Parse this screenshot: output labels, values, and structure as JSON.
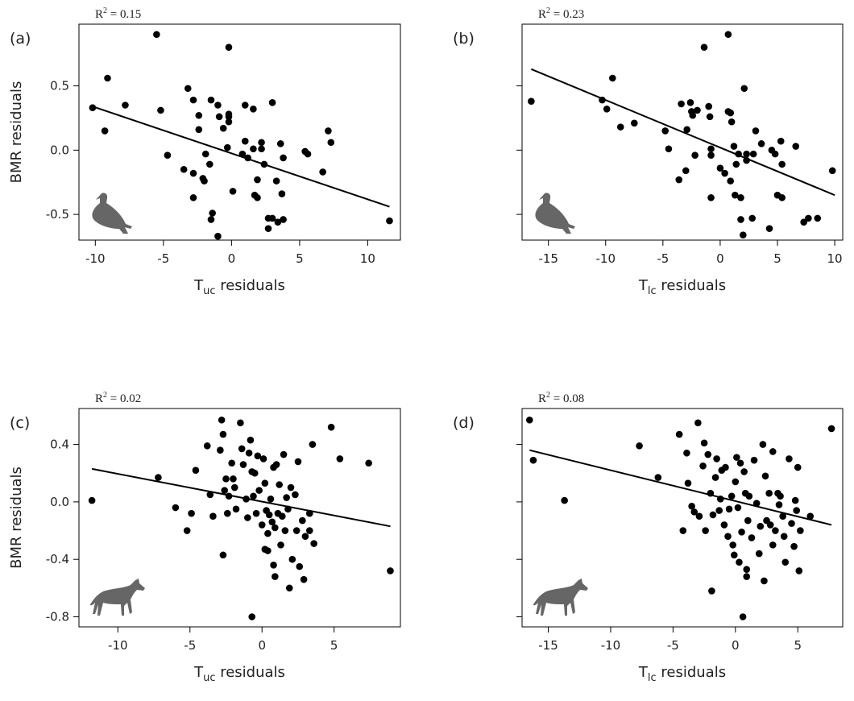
{
  "chart_data": [
    {
      "type": "scatter",
      "panel": "(a)",
      "annotation": {
        "base": "R",
        "sup": "2",
        "text": " = 0.15"
      },
      "xlabel": {
        "base": "T",
        "sub": "uc",
        "text": " residuals"
      },
      "ylabel": "BMR residuals",
      "icon": "bird",
      "color": "#000000",
      "fit_color": "#000000",
      "ytick_labels": true,
      "xlim": [
        -11.2,
        12.4
      ],
      "ylim": [
        -0.7,
        0.98
      ],
      "xticks": [
        -10,
        -5,
        0,
        5,
        10
      ],
      "yticks": [
        -0.5,
        {
          "value": 0,
          "label": "0.0"
        },
        0.5
      ],
      "x": [
        -10.2,
        -9.3,
        -9.1,
        -7.8,
        -5.5,
        -5.2,
        -4.7,
        -3.5,
        -3.2,
        -2.8,
        -2.8,
        -2.8,
        -2.4,
        -2.4,
        -2.1,
        -2.0,
        -1.9,
        -1.6,
        -1.5,
        -1.4,
        -1.5,
        -1.0,
        -1.0,
        -0.9,
        -0.6,
        -0.2,
        -0.2,
        -0.2,
        -0.2,
        -0.3,
        0.1,
        0.8,
        1.0,
        1.0,
        1.2,
        1.6,
        1.6,
        1.7,
        1.9,
        1.9,
        2.2,
        2.2,
        2.4,
        2.7,
        2.7,
        3.0,
        3.0,
        3.3,
        3.4,
        3.6,
        3.7,
        3.8,
        3.8,
        5.4,
        5.6,
        6.7,
        7.1,
        7.3,
        11.6
      ],
      "y": [
        0.33,
        0.15,
        0.56,
        0.35,
        0.9,
        0.31,
        -0.04,
        -0.15,
        0.48,
        0.39,
        -0.18,
        -0.37,
        0.27,
        0.16,
        -0.22,
        -0.24,
        -0.03,
        -0.11,
        0.39,
        -0.49,
        -0.54,
        0.35,
        -0.67,
        0.26,
        0.17,
        0.26,
        0.28,
        0.22,
        0.8,
        0.02,
        -0.32,
        -0.03,
        0.07,
        0.35,
        -0.06,
        0.01,
        0.32,
        -0.35,
        -0.37,
        -0.23,
        0.06,
        0.01,
        -0.11,
        -0.53,
        -0.61,
        0.37,
        -0.53,
        -0.24,
        -0.56,
        0.05,
        -0.34,
        -0.54,
        -0.06,
        -0.01,
        -0.03,
        -0.17,
        0.15,
        0.06,
        -0.55
      ],
      "fit": {
        "x": [
          -10.2,
          11.6
        ],
        "y": [
          0.34,
          -0.44
        ]
      }
    },
    {
      "type": "scatter",
      "panel": "(b)",
      "annotation": {
        "base": "R",
        "sup": "2",
        "text": " = 0.23"
      },
      "xlabel": {
        "base": "T",
        "sub": "lc",
        "text": " residuals"
      },
      "icon": "bird",
      "color": "#000000",
      "fit_color": "#000000",
      "ytick_labels": false,
      "xlim": [
        -17.3,
        10.7
      ],
      "ylim": [
        -0.7,
        0.98
      ],
      "xticks": [
        -15,
        -10,
        -5,
        0,
        5,
        10
      ],
      "yticks": [
        -0.5,
        {
          "value": 0,
          "label": "0.0"
        },
        0.5
      ],
      "x": [
        -16.5,
        -10.3,
        -9.9,
        -9.4,
        -8.7,
        -7.5,
        -4.8,
        -4.5,
        -3.6,
        -3.4,
        -3.0,
        -2.9,
        -2.6,
        -2.5,
        -2.4,
        -2.2,
        -2.0,
        -1.4,
        -1.0,
        -0.9,
        -0.8,
        -0.8,
        -0.8,
        0.0,
        0.4,
        0.7,
        0.9,
        0.7,
        0.9,
        1.0,
        1.2,
        1.3,
        1.4,
        1.6,
        1.8,
        1.8,
        2.0,
        2.1,
        2.3,
        2.3,
        2.8,
        2.9,
        3.1,
        3.6,
        4.3,
        4.5,
        4.8,
        5.0,
        5.3,
        5.4,
        5.4,
        6.6,
        7.3,
        7.7,
        8.5,
        9.8
      ],
      "y": [
        0.38,
        0.39,
        0.32,
        0.56,
        0.18,
        0.21,
        0.15,
        0.01,
        -0.23,
        0.36,
        -0.16,
        0.16,
        0.37,
        0.3,
        0.27,
        -0.04,
        0.31,
        0.8,
        0.34,
        0.26,
        -0.04,
        0.01,
        -0.37,
        -0.14,
        -0.18,
        0.9,
        0.29,
        0.3,
        -0.24,
        0.22,
        0.03,
        -0.35,
        -0.11,
        -0.03,
        -0.37,
        -0.54,
        -0.66,
        0.48,
        -0.03,
        -0.08,
        -0.53,
        -0.03,
        0.15,
        0.05,
        -0.61,
        0.0,
        -0.03,
        -0.35,
        0.07,
        -0.37,
        -0.11,
        0.03,
        -0.56,
        -0.53,
        -0.53,
        -0.16
      ],
      "fit": {
        "x": [
          -16.5,
          10.0
        ],
        "y": [
          0.63,
          -0.35
        ]
      }
    },
    {
      "type": "scatter",
      "panel": "(c)",
      "annotation": {
        "base": "R",
        "sup": "2",
        "text": " = 0.02"
      },
      "xlabel": {
        "base": "T",
        "sub": "uc",
        "text": " residuals"
      },
      "ylabel": "BMR residuals",
      "icon": "wolf",
      "color": "#000000",
      "fit_color": "#000000",
      "ytick_labels": true,
      "xlim": [
        -12.7,
        9.6
      ],
      "ylim": [
        -0.87,
        0.65
      ],
      "xticks": [
        -10,
        -5,
        0,
        5
      ],
      "yticks": [
        -0.8,
        -0.4,
        {
          "value": 0,
          "label": "0.0"
        },
        0.4
      ],
      "x": [
        -11.8,
        -7.2,
        -6.0,
        -5.2,
        -4.9,
        -4.6,
        -3.8,
        -3.6,
        -3.4,
        -2.9,
        -2.8,
        -2.7,
        -2.7,
        -2.6,
        -2.5,
        -2.4,
        -2.3,
        -2.1,
        -2.0,
        -1.9,
        -1.8,
        -1.5,
        -1.4,
        -1.3,
        -1.1,
        -1.0,
        -0.9,
        -0.8,
        -0.7,
        -0.6,
        -0.5,
        -0.4,
        -0.7,
        -0.3,
        -0.2,
        0.0,
        0.1,
        0.2,
        0.2,
        0.3,
        0.4,
        0.4,
        0.5,
        0.6,
        0.7,
        0.8,
        0.8,
        0.9,
        0.9,
        1.0,
        1.1,
        1.2,
        1.3,
        1.4,
        1.5,
        1.6,
        1.7,
        1.8,
        1.9,
        2.0,
        2.1,
        2.3,
        2.4,
        2.5,
        2.6,
        2.8,
        2.9,
        3.0,
        3.3,
        3.3,
        3.5,
        3.6,
        4.8,
        5.4,
        7.4,
        8.9
      ],
      "y": [
        0.01,
        0.17,
        -0.04,
        -0.2,
        -0.08,
        0.22,
        0.39,
        0.05,
        -0.1,
        0.36,
        0.57,
        0.47,
        -0.37,
        0.08,
        0.16,
        -0.08,
        0.04,
        0.27,
        0.16,
        0.1,
        -0.05,
        0.55,
        0.37,
        0.26,
        0.02,
        -0.11,
        0.34,
        0.43,
        0.21,
        0.04,
        0.2,
        -0.08,
        -0.8,
        0.32,
        0.08,
        -0.16,
        0.3,
        0.13,
        -0.33,
        -0.06,
        -0.22,
        -0.34,
        -0.09,
        0.02,
        -0.14,
        -0.44,
        0.24,
        -0.18,
        -0.52,
        0.26,
        -0.08,
        0.12,
        -0.3,
        -0.1,
        0.33,
        -0.2,
        0.03,
        -0.05,
        -0.6,
        0.1,
        -0.4,
        0.05,
        -0.2,
        0.28,
        -0.45,
        -0.13,
        -0.54,
        -0.24,
        -0.08,
        -0.2,
        0.4,
        -0.29,
        0.52,
        0.3,
        0.27,
        -0.48
      ],
      "fit": {
        "x": [
          -11.8,
          8.9
        ],
        "y": [
          0.23,
          -0.17
        ]
      }
    },
    {
      "type": "scatter",
      "panel": "(d)",
      "annotation": {
        "base": "R",
        "sup": "2",
        "text": " = 0.08"
      },
      "xlabel": {
        "base": "T",
        "sub": "lc",
        "text": " residuals"
      },
      "icon": "wolf",
      "color": "#000000",
      "fit_color": "#000000",
      "ytick_labels": false,
      "xlim": [
        -17.1,
        8.6
      ],
      "ylim": [
        -0.87,
        0.65
      ],
      "xticks": [
        -15,
        -10,
        -5,
        0,
        5
      ],
      "yticks": [
        -0.8,
        -0.4,
        {
          "value": 0,
          "label": "0.0"
        },
        0.4
      ],
      "x": [
        -16.5,
        -16.2,
        -13.7,
        -7.7,
        -6.2,
        -4.5,
        -4.2,
        -3.9,
        -3.8,
        -3.5,
        -3.3,
        -3.0,
        -2.9,
        -2.6,
        -2.5,
        -2.4,
        -2.2,
        -2.0,
        -1.9,
        -1.8,
        -1.6,
        -1.5,
        -1.3,
        -1.2,
        -1.1,
        -0.9,
        -0.8,
        -0.6,
        -0.5,
        -0.3,
        -0.2,
        -0.1,
        0.0,
        0.1,
        0.2,
        0.3,
        0.4,
        0.5,
        0.6,
        0.7,
        0.8,
        0.9,
        0.9,
        1.0,
        1.1,
        1.3,
        1.5,
        1.7,
        1.9,
        2.0,
        2.2,
        2.3,
        2.4,
        2.5,
        2.7,
        2.8,
        3.0,
        3.0,
        3.2,
        3.4,
        3.5,
        3.6,
        3.8,
        3.9,
        4.0,
        4.3,
        4.5,
        4.7,
        4.8,
        4.9,
        5.0,
        5.1,
        5.2,
        6.0,
        7.7
      ],
      "y": [
        0.57,
        0.29,
        0.01,
        0.39,
        0.17,
        0.47,
        -0.2,
        0.34,
        0.13,
        -0.03,
        -0.07,
        0.55,
        -0.1,
        0.25,
        0.41,
        -0.2,
        0.33,
        0.06,
        -0.62,
        -0.09,
        0.17,
        0.3,
        -0.06,
        0.02,
        0.22,
        -0.16,
        0.24,
        -0.24,
        -0.05,
        0.04,
        -0.3,
        -0.37,
        0.14,
        0.31,
        -0.04,
        -0.42,
        0.27,
        -0.21,
        -0.8,
        0.21,
        0.06,
        -0.47,
        -0.52,
        -0.13,
        0.04,
        -0.25,
        0.29,
        -0.01,
        -0.36,
        -0.17,
        0.4,
        -0.55,
        0.18,
        -0.13,
        0.06,
        -0.16,
        0.35,
        -0.3,
        -0.2,
        0.06,
        -0.02,
        0.04,
        -0.1,
        -0.24,
        -0.42,
        0.3,
        -0.15,
        -0.31,
        0.01,
        -0.06,
        0.24,
        -0.48,
        -0.2,
        -0.1,
        0.51
      ],
      "fit": {
        "x": [
          -16.5,
          7.7
        ],
        "y": [
          0.36,
          -0.16
        ]
      }
    }
  ]
}
